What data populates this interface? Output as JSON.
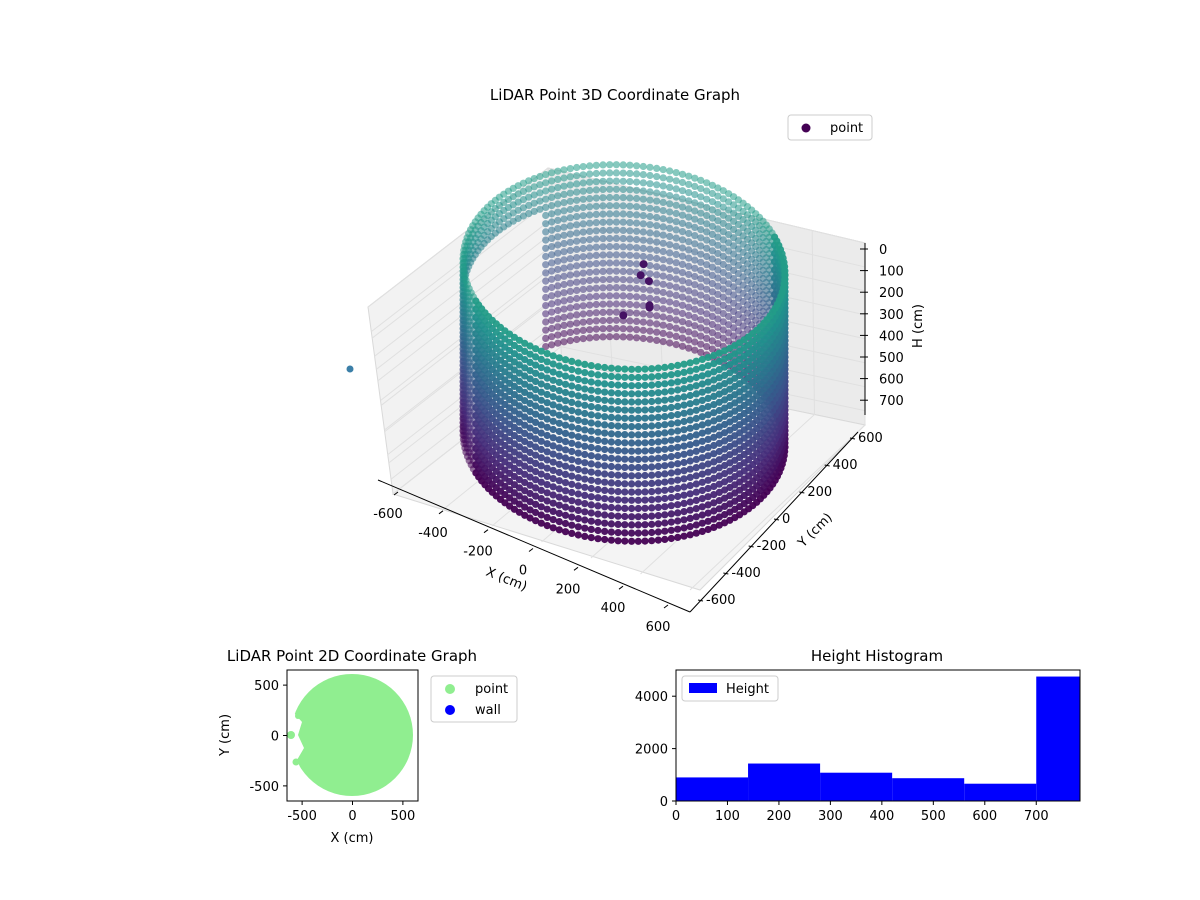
{
  "colors": {
    "viridis": [
      "#440154",
      "#472c7a",
      "#3b518b",
      "#2c718e",
      "#21908d",
      "#27ad81",
      "#5cc863",
      "#aadc32",
      "#fde725"
    ],
    "panes": "#f2f2f2",
    "grid": "#e6e6e6",
    "point2d": "#90ee90",
    "wall": "#0000ff",
    "hist": "#0000ff"
  },
  "chart_data": [
    {
      "type": "scatter3d",
      "title": "LiDAR Point 3D Coordinate Graph",
      "xlabel": "X (cm)",
      "ylabel": "Y (cm)",
      "zlabel": "H (cm)",
      "xticks": [
        "-600",
        "-400",
        "-200",
        "0",
        "200",
        "400",
        "600"
      ],
      "yticks": [
        "-600",
        "-400",
        "-200",
        "0",
        "200",
        "400",
        "600"
      ],
      "zticks": [
        "0",
        "100",
        "200",
        "300",
        "400",
        "500",
        "600",
        "700"
      ],
      "xlim": [
        -650,
        650
      ],
      "ylim": [
        -650,
        650
      ],
      "zlim": [
        0,
        760
      ],
      "zinverted": true,
      "legend": [
        {
          "name": "point",
          "color": "#440154"
        }
      ],
      "legend_position": "upper-right",
      "cylinder_radius_cm": 610,
      "cylinder_height_range": [
        0,
        760
      ],
      "colormap": "viridis"
    },
    {
      "type": "scatter",
      "title": "LiDAR Point 2D Coordinate Graph",
      "xlabel": "X (cm)",
      "ylabel": "Y (cm)",
      "xticks": [
        "-500",
        "0",
        "500"
      ],
      "yticks": [
        "500",
        "0",
        "-500"
      ],
      "xlim": [
        -650,
        650
      ],
      "ylim": [
        -650,
        650
      ],
      "legend": [
        {
          "name": "point",
          "color": "#90ee90"
        },
        {
          "name": "wall",
          "color": "#0000ff"
        }
      ],
      "legend_position": "outside-right",
      "disk_radius_cm": 610
    },
    {
      "type": "bar",
      "title": "Height Histogram",
      "xticks": [
        "0",
        "100",
        "200",
        "300",
        "400",
        "500",
        "600",
        "700"
      ],
      "yticks": [
        "0",
        "2000",
        "4000"
      ],
      "xlim": [
        0,
        785
      ],
      "ylim": [
        0,
        5000
      ],
      "bin_edges": [
        0,
        140,
        280,
        420,
        560,
        700,
        785
      ],
      "values": [
        900,
        1430,
        1080,
        870,
        660,
        4750
      ],
      "legend": [
        {
          "name": "Height",
          "color": "#0000ff"
        }
      ],
      "legend_position": "upper-left"
    }
  ]
}
